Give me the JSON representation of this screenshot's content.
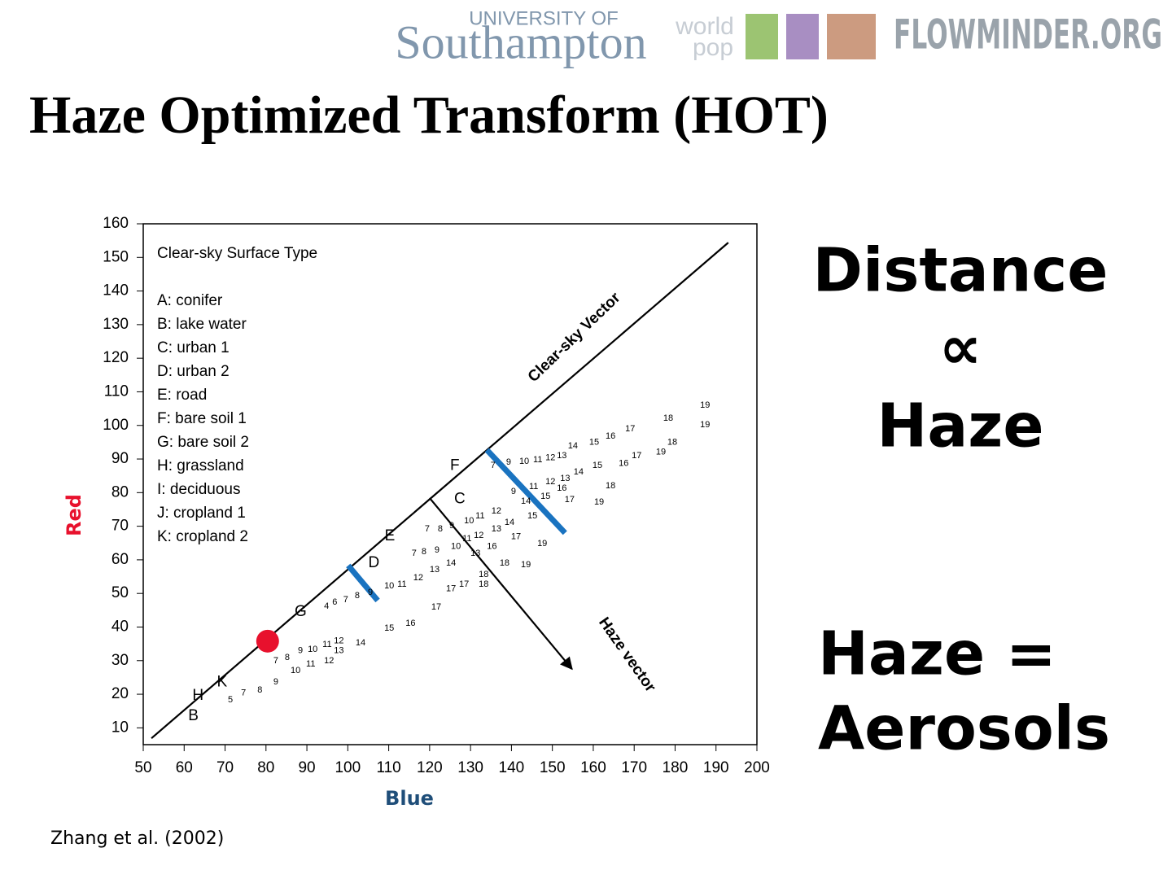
{
  "header": {
    "univ_small": "UNIVERSITY OF",
    "univ": "Southampton",
    "wp1": "world",
    "wp2": "pop",
    "flowminder": "FLOWMINDER.ORG"
  },
  "title": "Haze Optimized Transform (HOT)",
  "right_text": {
    "line1": "Distance",
    "line2": "∝",
    "line3": "Haze",
    "line4": "Haze =",
    "line5": "Aerosols"
  },
  "citation": "Zhang et al. (2002)",
  "chart_data": {
    "type": "scatter",
    "xlabel": "Blue",
    "ylabel": "Red",
    "xlim": [
      50,
      200
    ],
    "ylim": [
      5,
      160
    ],
    "xticks": [
      50,
      60,
      70,
      80,
      90,
      100,
      110,
      120,
      130,
      140,
      150,
      160,
      170,
      180,
      190,
      200
    ],
    "yticks": [
      10,
      20,
      30,
      40,
      50,
      60,
      70,
      80,
      90,
      100,
      110,
      120,
      130,
      140,
      150,
      160
    ],
    "legend": {
      "title": "Clear-sky Surface Type",
      "entries": [
        "A: conifer",
        "B: lake water",
        "C: urban 1",
        "D: urban 2",
        "E: road",
        "F: bare soil 1",
        "G: bare soil 2",
        "H: grassland",
        "I: deciduous",
        "J: cropland 1",
        "K: cropland 2"
      ]
    },
    "lines": [
      {
        "x": [
          52,
          193
        ],
        "y": [
          6.9,
          154.4
        ],
        "color": "#000000",
        "style": "thin"
      },
      {
        "x": [
          120,
          154.8
        ],
        "y": [
          78.4,
          27.5
        ],
        "color": "#000000",
        "style": "arrow"
      },
      {
        "x": [
          100.1,
          107.3
        ],
        "y": [
          58.3,
          47.9
        ],
        "color": "#1a73c0",
        "style": "thick"
      },
      {
        "x": [
          134,
          153.1
        ],
        "y": [
          92.7,
          68
        ],
        "color": "#1a73c0",
        "style": "thick"
      }
    ],
    "annotations": [
      "Clear-sky Vector",
      "Haze vector"
    ],
    "marker": {
      "x": 80.4,
      "y": 35.8,
      "color": "#e8112d"
    },
    "letters": [
      {
        "label": "G",
        "x": 87,
        "y": 44.5
      },
      {
        "label": "D",
        "x": 105,
        "y": 59
      },
      {
        "label": "E",
        "x": 109,
        "y": 67
      },
      {
        "label": "C",
        "x": 126,
        "y": 78
      },
      {
        "label": "F",
        "x": 125,
        "y": 88
      },
      {
        "label": "H",
        "x": 62,
        "y": 19.5
      },
      {
        "label": "K",
        "x": 68,
        "y": 23.5
      },
      {
        "label": "B",
        "x": 61,
        "y": 13.5
      }
    ],
    "point_labels": [
      {
        "label": "7",
        "x": 134.9,
        "y": 88.1
      },
      {
        "label": "9",
        "x": 138.7,
        "y": 89
      },
      {
        "label": "10",
        "x": 141.9,
        "y": 89.3
      },
      {
        "label": "11",
        "x": 145.3,
        "y": 89.8
      },
      {
        "label": "12",
        "x": 148.3,
        "y": 90.3
      },
      {
        "label": "13",
        "x": 151.1,
        "y": 91
      },
      {
        "label": "14",
        "x": 153.8,
        "y": 93.9
      },
      {
        "label": "15",
        "x": 159,
        "y": 94.9
      },
      {
        "label": "16",
        "x": 163,
        "y": 96.8
      },
      {
        "label": "17",
        "x": 167.8,
        "y": 99
      },
      {
        "label": "18",
        "x": 177.1,
        "y": 102.1
      },
      {
        "label": "19",
        "x": 186.1,
        "y": 106
      },
      {
        "label": "9",
        "x": 139.9,
        "y": 80.3
      },
      {
        "label": "11",
        "x": 144.3,
        "y": 81.8
      },
      {
        "label": "12",
        "x": 148.3,
        "y": 83.2
      },
      {
        "label": "13",
        "x": 151.9,
        "y": 84.2
      },
      {
        "label": "14",
        "x": 155.2,
        "y": 86.1
      },
      {
        "label": "15",
        "x": 159.8,
        "y": 88.1
      },
      {
        "label": "16",
        "x": 166.2,
        "y": 88.6
      },
      {
        "label": "17",
        "x": 169.4,
        "y": 91
      },
      {
        "label": "19",
        "x": 175.3,
        "y": 92
      },
      {
        "label": "18",
        "x": 178.1,
        "y": 94.9
      },
      {
        "label": "19",
        "x": 186.1,
        "y": 100.2
      },
      {
        "label": "14",
        "x": 142.3,
        "y": 77.4
      },
      {
        "label": "15",
        "x": 147.1,
        "y": 78.9
      },
      {
        "label": "16",
        "x": 151.1,
        "y": 81.3
      },
      {
        "label": "17",
        "x": 153,
        "y": 77.9
      },
      {
        "label": "18",
        "x": 163,
        "y": 82
      },
      {
        "label": "19",
        "x": 160.2,
        "y": 77.2
      },
      {
        "label": "7",
        "x": 118.8,
        "y": 69.2
      },
      {
        "label": "8",
        "x": 122,
        "y": 69.2
      },
      {
        "label": "9",
        "x": 124.8,
        "y": 70.1
      },
      {
        "label": "10",
        "x": 128.4,
        "y": 71.6
      },
      {
        "label": "11",
        "x": 131.2,
        "y": 73
      },
      {
        "label": "12",
        "x": 135.1,
        "y": 74.5
      },
      {
        "label": "13",
        "x": 135.1,
        "y": 69.2
      },
      {
        "label": "14",
        "x": 138.3,
        "y": 71.1
      },
      {
        "label": "15",
        "x": 143.9,
        "y": 73
      },
      {
        "label": "17",
        "x": 139.9,
        "y": 66.8
      },
      {
        "label": "7",
        "x": 115.6,
        "y": 61.9
      },
      {
        "label": "8",
        "x": 118,
        "y": 62.4
      },
      {
        "label": "9",
        "x": 121.2,
        "y": 62.9
      },
      {
        "label": "10",
        "x": 125.2,
        "y": 63.9
      },
      {
        "label": "11",
        "x": 128,
        "y": 66.3
      },
      {
        "label": "12",
        "x": 130.8,
        "y": 67.2
      },
      {
        "label": "13",
        "x": 130,
        "y": 61.9
      },
      {
        "label": "16",
        "x": 134,
        "y": 63.9
      },
      {
        "label": "18",
        "x": 137.1,
        "y": 59
      },
      {
        "label": "19",
        "x": 142.3,
        "y": 58.5
      },
      {
        "label": "19",
        "x": 146.3,
        "y": 64.8
      },
      {
        "label": "10",
        "x": 108.9,
        "y": 52.2
      },
      {
        "label": "11",
        "x": 112.1,
        "y": 52.7
      },
      {
        "label": "12",
        "x": 116,
        "y": 54.6
      },
      {
        "label": "13",
        "x": 120,
        "y": 57.1
      },
      {
        "label": "14",
        "x": 124,
        "y": 59
      },
      {
        "label": "17",
        "x": 124,
        "y": 51.3
      },
      {
        "label": "17",
        "x": 127.2,
        "y": 52.7
      },
      {
        "label": "18",
        "x": 132,
        "y": 55.6
      },
      {
        "label": "18",
        "x": 132,
        "y": 52.7
      },
      {
        "label": "15",
        "x": 108.9,
        "y": 39.6
      },
      {
        "label": "16",
        "x": 114.1,
        "y": 41.1
      },
      {
        "label": "17",
        "x": 120.4,
        "y": 45.9
      },
      {
        "label": "4",
        "x": 94.2,
        "y": 46.2
      },
      {
        "label": "6",
        "x": 96.2,
        "y": 47.4
      },
      {
        "label": "7",
        "x": 98.9,
        "y": 48.1
      },
      {
        "label": "8",
        "x": 101.7,
        "y": 49.3
      },
      {
        "label": "9",
        "x": 104.9,
        "y": 50.3
      },
      {
        "label": "7",
        "x": 81.8,
        "y": 29.9
      },
      {
        "label": "8",
        "x": 84.6,
        "y": 30.9
      },
      {
        "label": "9",
        "x": 87.8,
        "y": 32.9
      },
      {
        "label": "10",
        "x": 90.2,
        "y": 33.3
      },
      {
        "label": "11",
        "x": 93.8,
        "y": 34.8
      },
      {
        "label": "12",
        "x": 96.6,
        "y": 35.8
      },
      {
        "label": "13",
        "x": 96.6,
        "y": 32.9
      },
      {
        "label": "14",
        "x": 101.9,
        "y": 35.3
      },
      {
        "label": "12",
        "x": 94.2,
        "y": 29.9
      },
      {
        "label": "11",
        "x": 89.8,
        "y": 29
      },
      {
        "label": "10",
        "x": 86,
        "y": 27
      },
      {
        "label": "9",
        "x": 81.8,
        "y": 23.6
      },
      {
        "label": "8",
        "x": 77.9,
        "y": 21.2
      },
      {
        "label": "7",
        "x": 73.9,
        "y": 20.3
      },
      {
        "label": "5",
        "x": 70.7,
        "y": 18.3
      }
    ]
  }
}
